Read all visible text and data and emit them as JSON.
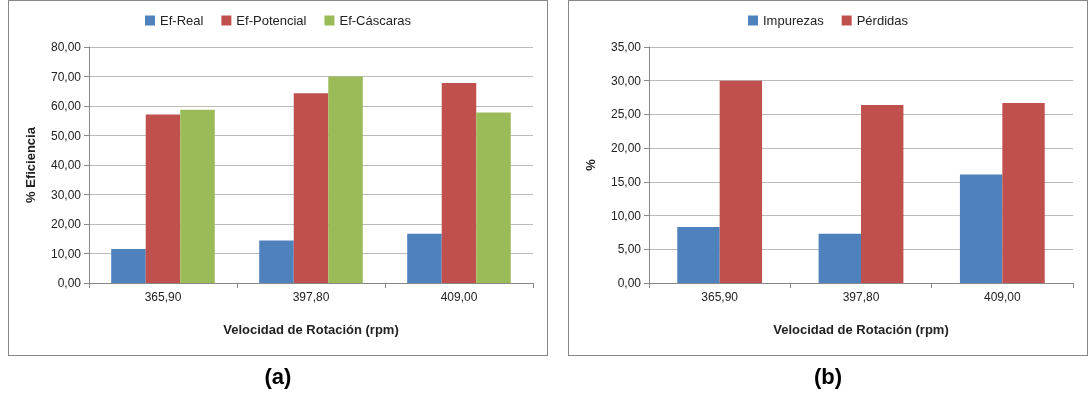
{
  "chart_data": [
    {
      "type": "bar",
      "xlabel": "Velocidad de Rotación (rpm)",
      "ylabel": "% Eficiencia",
      "categories": [
        "365,90",
        "397,80",
        "409,00"
      ],
      "series": [
        {
          "name": "Ef-Real",
          "color": "#4f81bd",
          "values": [
            11.5,
            14.4,
            16.7
          ]
        },
        {
          "name": "Ef-Potencial",
          "color": "#c0504d",
          "values": [
            57.1,
            64.3,
            67.8
          ]
        },
        {
          "name": "Ef-Cáscaras",
          "color": "#9bbb59",
          "values": [
            58.7,
            70.0,
            57.8
          ]
        }
      ],
      "ylim": [
        0,
        80
      ],
      "yticks": [
        {
          "value": 0,
          "label": "0,00"
        },
        {
          "value": 10,
          "label": "10,00"
        },
        {
          "value": 20,
          "label": "20,00"
        },
        {
          "value": 30,
          "label": "30,00"
        },
        {
          "value": 40,
          "label": "40,00"
        },
        {
          "value": 50,
          "label": "50,00"
        },
        {
          "value": 60,
          "label": "60,00"
        },
        {
          "value": 70,
          "label": "70,00"
        },
        {
          "value": 80,
          "label": "80,00"
        }
      ],
      "grid": "y",
      "legend": "top",
      "annotations": [
        "(a)"
      ]
    },
    {
      "type": "bar",
      "xlabel": "Velocidad de Rotación (rpm)",
      "ylabel": "%",
      "categories": [
        "365,90",
        "397,80",
        "409,00"
      ],
      "series": [
        {
          "name": "Impurezas",
          "color": "#4f81bd",
          "values": [
            8.3,
            7.3,
            16.1
          ]
        },
        {
          "name": "Pérdidas",
          "color": "#c0504d",
          "values": [
            30.0,
            26.4,
            26.7
          ]
        }
      ],
      "ylim": [
        0,
        35
      ],
      "yticks": [
        {
          "value": 0,
          "label": "0,00"
        },
        {
          "value": 5,
          "label": "5,00"
        },
        {
          "value": 10,
          "label": "10,00"
        },
        {
          "value": 15,
          "label": "15,00"
        },
        {
          "value": 20,
          "label": "20,00"
        },
        {
          "value": 25,
          "label": "25,00"
        },
        {
          "value": 30,
          "label": "30,00"
        },
        {
          "value": 35,
          "label": "35,00"
        }
      ],
      "grid": "y",
      "legend": "top",
      "annotations": [
        "(b)"
      ]
    }
  ]
}
